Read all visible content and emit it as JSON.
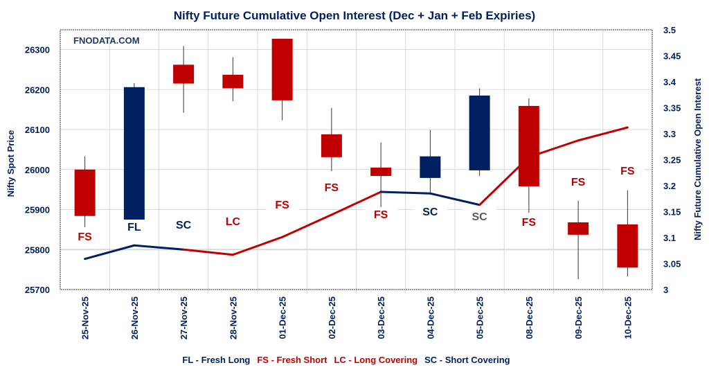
{
  "chart_data": {
    "type": "candlestick+line",
    "title": "Nifty Future Cumulative Open Interest (Dec + Jan  + Feb Expiries)",
    "watermark": "FNODATA.COM",
    "ylabel_left": "Nifty Spot Price",
    "ylabel_right": "Nifty Future Cumulative Open Interest",
    "ylim_left": [
      25700,
      26350
    ],
    "yticks_left": [
      25700,
      25800,
      25900,
      26000,
      26100,
      26200,
      26300
    ],
    "ylim_right": [
      3,
      3.5
    ],
    "yticks_right": [
      "3",
      "3.05",
      "3.1",
      "3.15",
      "3.2",
      "3.25",
      "3.3",
      "3.35",
      "3.4",
      "3.45",
      "3.5"
    ],
    "grid": true,
    "categories": [
      "25-Nov-25",
      "26-Nov-25",
      "27-Nov-25",
      "28-Nov-25",
      "01-Dec-25",
      "02-Dec-25",
      "03-Dec-25",
      "04-Dec-25",
      "05-Dec-25",
      "08-Dec-25",
      "09-Dec-25",
      "10-Dec-25"
    ],
    "ohlc": [
      {
        "open": 26000,
        "high": 26033,
        "low": 25856,
        "close": 25884
      },
      {
        "open": 25872,
        "high": 26216,
        "low": 25872,
        "close": 26206
      },
      {
        "open": 26262,
        "high": 26309,
        "low": 26142,
        "close": 26215
      },
      {
        "open": 26237,
        "high": 26281,
        "low": 26171,
        "close": 26203
      },
      {
        "open": 26327,
        "high": 26327,
        "low": 26123,
        "close": 26173
      },
      {
        "open": 26088,
        "high": 26154,
        "low": 25996,
        "close": 26031
      },
      {
        "open": 26005,
        "high": 26068,
        "low": 25906,
        "close": 25984
      },
      {
        "open": 25979,
        "high": 26099,
        "low": 25941,
        "close": 26033
      },
      {
        "open": 25998,
        "high": 26203,
        "low": 25984,
        "close": 26185
      },
      {
        "open": 26159,
        "high": 26178,
        "low": 25892,
        "close": 25958
      },
      {
        "open": 25868,
        "high": 25922,
        "low": 25726,
        "close": 25837
      },
      {
        "open": 25863,
        "high": 25948,
        "low": 25733,
        "close": 25755
      }
    ],
    "open_interest": [
      3.059,
      3.085,
      3.077,
      3.067,
      3.101,
      3.144,
      3.188,
      3.185,
      3.163,
      3.255,
      3.287,
      3.312
    ],
    "signals": [
      "FS",
      "FL",
      "SC",
      "LC",
      "FS",
      "FS",
      "FS",
      "SC",
      "SC",
      "FS",
      "FS",
      "FS"
    ],
    "legend": [
      {
        "code": "FL",
        "text": "FL - Fresh Long",
        "color": "#002060"
      },
      {
        "code": "FS",
        "text": "FS - Fresh Short",
        "color": "#c00000"
      },
      {
        "code": "LC",
        "text": "LC - Long Covering",
        "color": "#c00000"
      },
      {
        "code": "SC",
        "text": "SC - Short Covering",
        "color": "#002060"
      }
    ],
    "legend_placement": "bottom",
    "colors": {
      "bearish": "#c00000",
      "bullish": "#002060",
      "navy": "#002060",
      "red": "#c00000",
      "grid": "#d9d9d9"
    }
  }
}
